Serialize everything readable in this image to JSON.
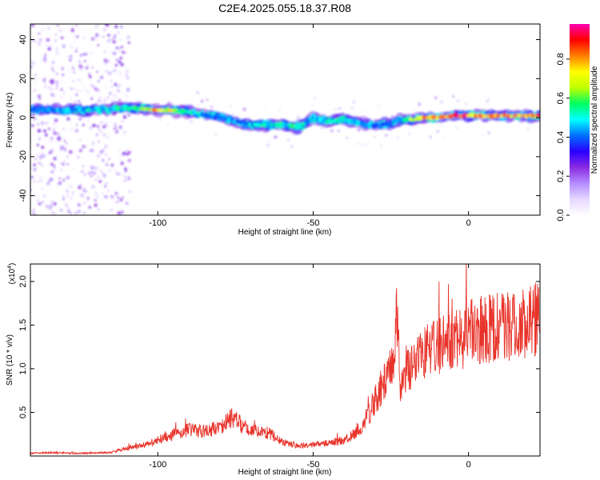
{
  "figure": {
    "title": "C2E4.2025.055.18.37.R08"
  },
  "colors": {
    "line": "#e8332a",
    "frame": "#000000",
    "colormap": [
      "#ffffff",
      "#e6d8ff",
      "#b48cff",
      "#8a2be2",
      "#2a00ff",
      "#0070ff",
      "#00ffff",
      "#00ff60",
      "#c0ff00",
      "#ffff00",
      "#ff8000",
      "#ff0000",
      "#ff00b0"
    ]
  },
  "chart_data": [
    {
      "type": "heatmap",
      "xlabel": "Height of straight line (km)",
      "ylabel": "Frequency (Hz)",
      "xlim": [
        -141,
        23
      ],
      "ylim": [
        -50,
        48
      ],
      "xticks": [
        -100,
        -50,
        0
      ],
      "yticks": [
        -40,
        -20,
        0,
        20,
        40
      ],
      "colorbar": {
        "label": "Normalized spectral amplitude",
        "range": [
          0.0,
          0.98
        ],
        "ticks": [
          "0.0",
          "0.2",
          "0.4",
          "0.6",
          "0.8"
        ]
      },
      "ridge": {
        "x": [
          -141,
          -130,
          -118,
          -110,
          -100,
          -90,
          -80,
          -72,
          -65,
          -60,
          -55,
          -50,
          -45,
          -40,
          -35,
          -30,
          -26,
          -22,
          -18,
          -14,
          -10,
          -5,
          0,
          5,
          10,
          15,
          20,
          23
        ],
        "freq": [
          4,
          4,
          4,
          5,
          4,
          3,
          0,
          -3,
          -4,
          -3,
          -5,
          0,
          -2,
          -1,
          -3,
          -4,
          -3,
          -1,
          -1,
          0,
          0,
          1,
          1,
          1,
          1,
          1,
          1,
          1
        ],
        "amplitude": [
          0.45,
          0.5,
          0.55,
          0.6,
          0.9,
          0.55,
          0.45,
          0.5,
          0.6,
          0.55,
          0.6,
          0.5,
          0.55,
          0.6,
          0.55,
          0.45,
          0.4,
          0.5,
          0.85,
          0.9,
          0.95,
          0.95,
          0.95,
          0.9,
          0.9,
          0.85,
          0.9,
          0.9
        ]
      }
    },
    {
      "type": "line",
      "xlabel": "Height of straight line (km)",
      "ylabel": "SNR (10 * v/v)",
      "y_multiplier": "(x10",
      "y_multiplier_exp": "4",
      "y_multiplier_close": ")",
      "xlim": [
        -141,
        23
      ],
      "ylim": [
        0,
        22000
      ],
      "xticks": [
        -100,
        -50,
        0
      ],
      "yticks": [
        0.5,
        1.0,
        1.5,
        2.0
      ],
      "series": [
        {
          "x": [
            -141,
            -135,
            -125,
            -115,
            -110,
            -105,
            -100,
            -95,
            -90,
            -85,
            -80,
            -76,
            -72,
            -68,
            -64,
            -60,
            -55,
            -50,
            -45,
            -40,
            -37,
            -34,
            -32,
            -30,
            -28,
            -26,
            -24,
            -23,
            -22,
            -21,
            -20,
            -18,
            -15,
            -12,
            -10,
            -5,
            0,
            5,
            10,
            15,
            20,
            23
          ],
          "y": [
            300,
            400,
            300,
            400,
            900,
            1200,
            1800,
            2500,
            3000,
            2800,
            3200,
            4500,
            3200,
            2800,
            2600,
            1600,
            1200,
            1300,
            1500,
            1800,
            2500,
            3500,
            5000,
            6500,
            8000,
            9000,
            11000,
            18000,
            8500,
            9000,
            10000,
            10500,
            12000,
            12000,
            12500,
            13000,
            14000,
            14500,
            15000,
            15000,
            15500,
            16000
          ]
        }
      ]
    }
  ]
}
